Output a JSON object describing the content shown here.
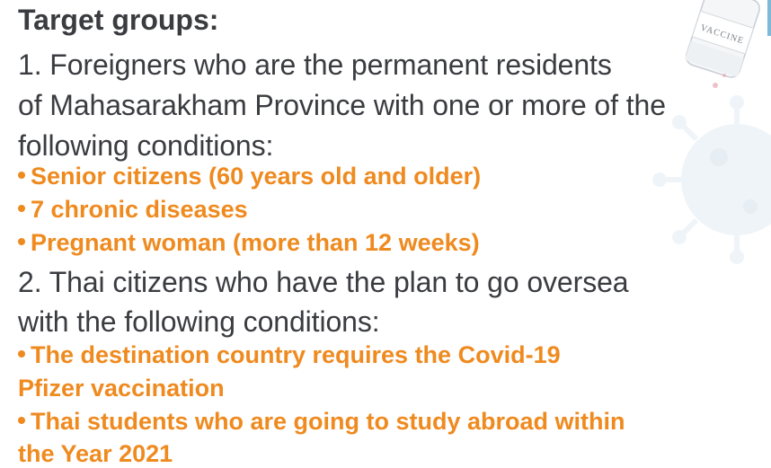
{
  "title": "Target groups:",
  "vial_label": "VACCINE",
  "group1": {
    "line1": "1. Foreigners who are the permanent residents",
    "line2": "of Mahasarakham Province with one or more of the",
    "line3": "following conditions:",
    "bullets": [
      "Senior citizens (60 years old and older)",
      "7 chronic diseases",
      "Pregnant woman (more than 12 weeks)"
    ]
  },
  "group2": {
    "line1": "2. Thai citizens who have the plan to go oversea",
    "line2": "with the following conditions:",
    "bullet1_line1": "The destination country requires the Covid-19",
    "bullet1_line2": "Pfizer vaccination",
    "bullet2_line1": "Thai students who are going to study abroad within",
    "bullet2_line2": "the Year 2021"
  },
  "colors": {
    "text_dark": "#3a3c40",
    "accent_orange": "#ef8a1f",
    "virus_light": "#e6eef4"
  }
}
